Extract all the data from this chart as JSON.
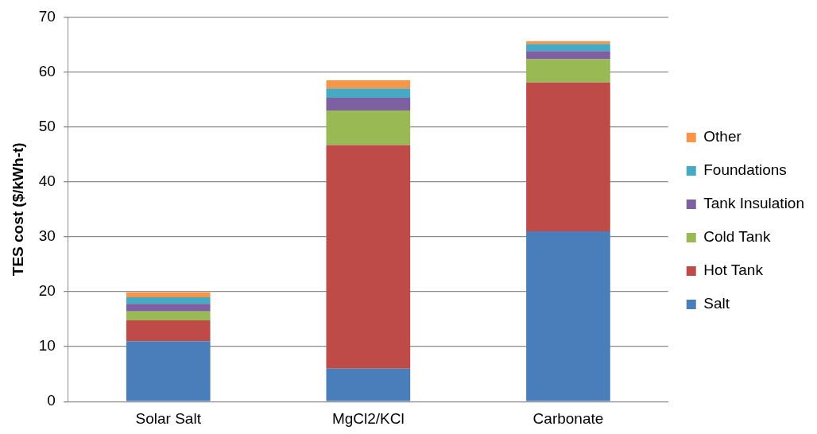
{
  "chart_data": {
    "type": "bar",
    "stacked": true,
    "ylabel": "TES cost ($/kWh-t)",
    "categories": [
      "Solar Salt",
      "MgCl2/KCl",
      "Carbonate"
    ],
    "series": [
      {
        "name": "Salt",
        "color": "#4a7ebb",
        "values": [
          11.0,
          6.0,
          31.0
        ]
      },
      {
        "name": "Hot Tank",
        "color": "#be4b48",
        "values": [
          3.8,
          40.7,
          27.1
        ]
      },
      {
        "name": "Cold Tank",
        "color": "#98b954",
        "values": [
          1.6,
          6.3,
          4.2
        ]
      },
      {
        "name": "Tank Insulation",
        "color": "#7d60a0",
        "values": [
          1.4,
          2.3,
          1.5
        ]
      },
      {
        "name": "Foundations",
        "color": "#46aac5",
        "values": [
          1.2,
          1.7,
          1.3
        ]
      },
      {
        "name": "Other",
        "color": "#f79646",
        "values": [
          0.9,
          1.5,
          0.5
        ]
      }
    ],
    "ylim": [
      0,
      70
    ],
    "yticks": [
      0,
      10,
      20,
      30,
      40,
      50,
      60,
      70
    ],
    "grid": "y",
    "legend": "right"
  }
}
